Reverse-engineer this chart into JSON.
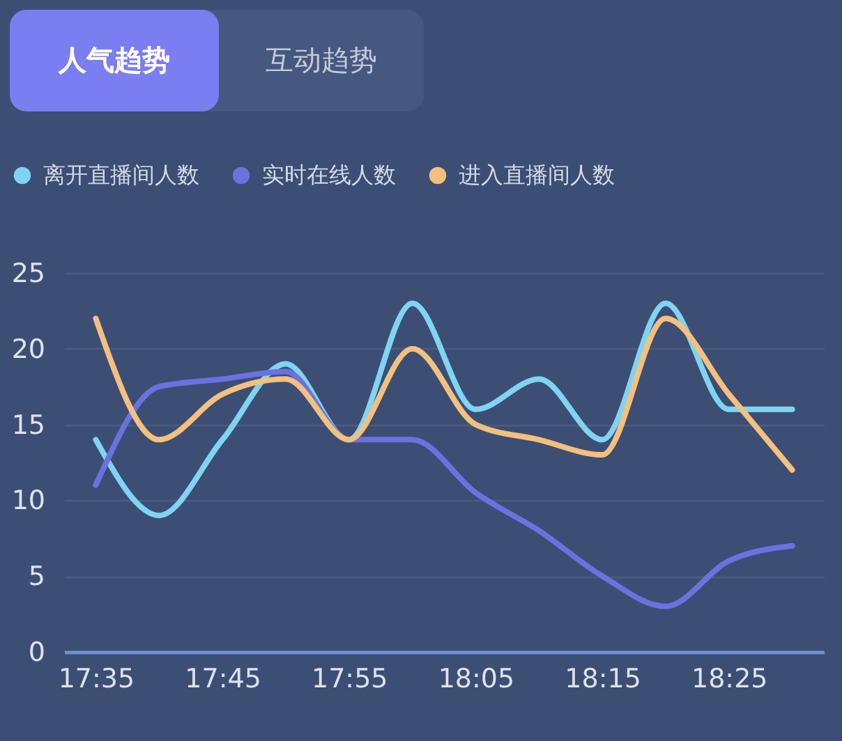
{
  "chart_data": {
    "type": "line",
    "title": "人气趋势",
    "annotations": [
      "互动趋势"
    ],
    "categories": [
      "17:35",
      null,
      "17:45",
      null,
      "17:55",
      null,
      "18:05",
      null,
      "18:15",
      null,
      "18:25",
      null
    ],
    "series": [
      {
        "name": "离开直播间人数",
        "color": "#7fd4f2",
        "values": [
          14,
          9,
          14,
          19,
          14,
          23,
          16,
          18,
          14,
          23,
          16,
          16
        ]
      },
      {
        "name": "实时在线人数",
        "color": "#6b72df",
        "values": [
          11,
          17.5,
          18,
          18.5,
          14,
          14,
          10.5,
          8,
          5,
          3,
          6,
          7
        ]
      },
      {
        "name": "进入直播间人数",
        "color": "#f3c07e",
        "values": [
          22,
          14,
          17,
          18,
          14,
          20,
          15,
          14,
          13,
          22,
          17,
          12
        ]
      }
    ],
    "ylim": [
      0,
      25
    ],
    "yticks": [
      0,
      5,
      10,
      15,
      20,
      25
    ],
    "grid": "y",
    "legend": "top left"
  }
}
